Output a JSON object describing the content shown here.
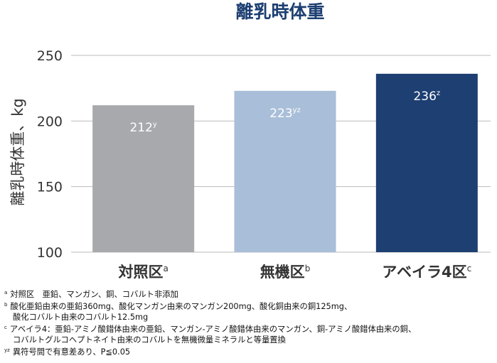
{
  "chart_data": {
    "type": "bar",
    "title": "離乳時体重",
    "ylabel": "離乳時体重、kg",
    "xlabel": "",
    "ylim": [
      100,
      250
    ],
    "yticks": [
      100,
      150,
      200,
      250
    ],
    "grid": true,
    "categories": [
      {
        "label": "対照区",
        "sup": "a"
      },
      {
        "label": "無機区",
        "sup": "b"
      },
      {
        "label": "アベイラ4区",
        "sup": "c"
      }
    ],
    "series": [
      {
        "values": [
          212,
          223,
          236
        ],
        "data_labels": [
          "212",
          "223",
          "236"
        ],
        "data_label_sups": [
          "y",
          "yz",
          "z"
        ],
        "colors": [
          "#a7a9ac",
          "#a9bed8",
          "#1d3f72"
        ]
      }
    ],
    "colors": {
      "title": "#1d3f72",
      "axis_text": "#333333",
      "gridline": "#bbbbbb"
    }
  },
  "footnotes": [
    {
      "sup": "a",
      "lines": [
        "対照区　亜鉛、マンガン、銅、コバルト非添加"
      ]
    },
    {
      "sup": "b",
      "lines": [
        "酸化亜鉛由来の亜鉛360mg、酸化マンガン由来のマンガン200mg、酸化銅由来の銅125mg、",
        "酸化コバルト由来のコバルト12.5mg"
      ]
    },
    {
      "sup": "c",
      "lines": [
        "アベイラ4：亜鉛-アミノ酸錯体由来の亜鉛、マンガン-アミノ酸錯体由来のマンガン、銅-アミノ酸錯体由来の銅、",
        "コバルトグルコヘプトネイト由来のコバルトを無機微量ミネラルと等量置換"
      ]
    },
    {
      "sup": "yz",
      "lines": [
        "異符号間で有意差あり、P≦0.05"
      ]
    }
  ]
}
